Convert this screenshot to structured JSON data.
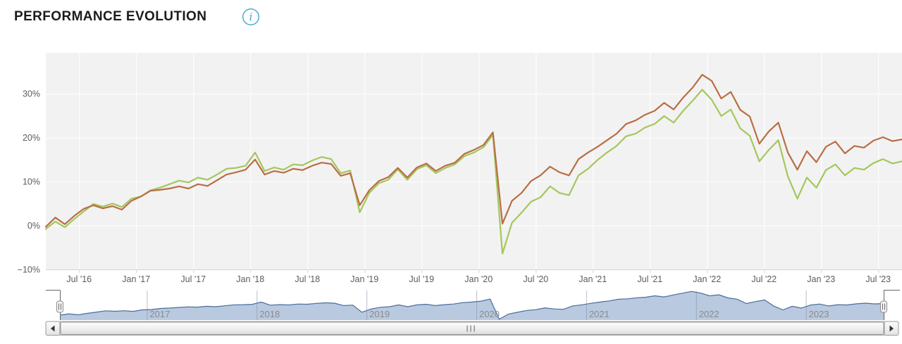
{
  "header": {
    "title": "PERFORMANCE EVOLUTION",
    "info_glyph": "i",
    "info_color": "#3fa9cb"
  },
  "chart_data": {
    "type": "line",
    "title": "PERFORMANCE EVOLUTION",
    "legend": "none",
    "grid": true,
    "colors": {
      "page_background": "#ffffff",
      "plot_background": "#f2f2f2",
      "grid": "#ffffff",
      "axis_line": "#ccd6eb",
      "tick_label": "#5c5c5c",
      "nav_fill": "#b9c9df",
      "nav_line": "#4a6d99",
      "nav_gridline": "#7b8ba3",
      "nav_year_label": "#8b8b8b",
      "outline": "#666666",
      "handle_fill": "#f5f5f5",
      "handle_stroke": "#8a8a8a",
      "scroll_border": "#999999",
      "arrow": "#333333"
    },
    "y_axis": {
      "unit": "%",
      "ylim": [
        -10,
        39.3
      ],
      "tick_values": [
        -10,
        0,
        10,
        20,
        30
      ],
      "tick_labels": [
        "−10%",
        "0%",
        "10%",
        "20%",
        "30%"
      ]
    },
    "x_axis": {
      "xlim": [
        2016.2083,
        2023.7083
      ],
      "tick_positions": [
        2016.5,
        2017.0,
        2017.5,
        2018.0,
        2018.5,
        2019.0,
        2019.5,
        2020.0,
        2020.5,
        2021.0,
        2021.5,
        2022.0,
        2022.5,
        2023.0,
        2023.5
      ],
      "tick_labels": [
        "Jul '16",
        "Jan '17",
        "Jul '17",
        "Jan '18",
        "Jul '18",
        "Jan '19",
        "Jul '19",
        "Jan '20",
        "Jul '20",
        "Jan '21",
        "Jul '21",
        "Jan '22",
        "Jul '22",
        "Jan '23",
        "Jul '23"
      ]
    },
    "sampling": {
      "x_start": 2016.2083,
      "x_step": 0.0833333
    },
    "series": [
      {
        "id": "series-orange",
        "name": "series-orange",
        "color": "#b96e45",
        "values": [
          -0.3,
          1.8,
          0.3,
          2.2,
          3.8,
          4.6,
          3.9,
          4.4,
          3.6,
          5.6,
          6.6,
          7.9,
          8.1,
          8.4,
          8.9,
          8.4,
          9.4,
          9.0,
          10.3,
          11.6,
          12.1,
          12.7,
          15.0,
          11.6,
          12.4,
          12.0,
          12.9,
          12.6,
          13.6,
          14.3,
          14.0,
          11.3,
          11.9,
          4.6,
          8.0,
          10.1,
          11.0,
          13.1,
          10.9,
          13.2,
          14.1,
          12.4,
          13.6,
          14.3,
          16.3,
          17.2,
          18.3,
          21.2,
          0.4,
          5.6,
          7.4,
          10.1,
          11.4,
          13.4,
          12.1,
          11.4,
          15.1,
          16.6,
          17.9,
          19.4,
          20.9,
          23.1,
          23.9,
          25.2,
          26.1,
          27.9,
          26.4,
          29.1,
          31.4,
          34.3,
          32.9,
          28.9,
          30.4,
          26.3,
          24.8,
          18.6,
          21.4,
          23.4,
          16.6,
          12.7,
          16.9,
          14.4,
          17.9,
          19.1,
          16.4,
          18.1,
          17.7,
          19.3,
          20.1,
          19.2,
          19.6
        ]
      },
      {
        "id": "series-green",
        "name": "series-green",
        "color": "#a4c75c",
        "values": [
          -0.8,
          0.9,
          -0.4,
          1.5,
          3.2,
          4.9,
          4.3,
          5.0,
          4.2,
          6.1,
          6.6,
          8.0,
          8.6,
          9.4,
          10.2,
          9.8,
          10.9,
          10.4,
          11.6,
          12.9,
          13.1,
          13.6,
          16.6,
          12.4,
          13.2,
          12.7,
          13.9,
          13.7,
          14.8,
          15.6,
          15.1,
          11.9,
          12.5,
          3.0,
          7.4,
          9.6,
          10.4,
          12.8,
          10.4,
          12.8,
          13.7,
          11.9,
          13.1,
          13.9,
          15.8,
          16.6,
          17.8,
          20.6,
          -6.4,
          0.6,
          2.9,
          5.4,
          6.4,
          8.9,
          7.4,
          6.9,
          11.4,
          12.9,
          14.9,
          16.6,
          18.1,
          20.3,
          20.9,
          22.3,
          23.1,
          24.9,
          23.4,
          26.1,
          28.4,
          30.9,
          28.6,
          24.9,
          26.4,
          22.1,
          20.4,
          14.6,
          17.2,
          19.4,
          11.2,
          6.1,
          10.9,
          8.6,
          12.6,
          13.9,
          11.4,
          13.1,
          12.7,
          14.2,
          15.1,
          14.1,
          14.6
        ]
      }
    ],
    "navigator": {
      "source_series_index": 1,
      "ylim": [
        -7.5,
        32
      ],
      "year_gridlines": [
        2017,
        2018,
        2019,
        2020,
        2021,
        2022,
        2023
      ],
      "year_labels": [
        "2017",
        "2018",
        "2019",
        "2020",
        "2021",
        "2022",
        "2023"
      ]
    }
  }
}
